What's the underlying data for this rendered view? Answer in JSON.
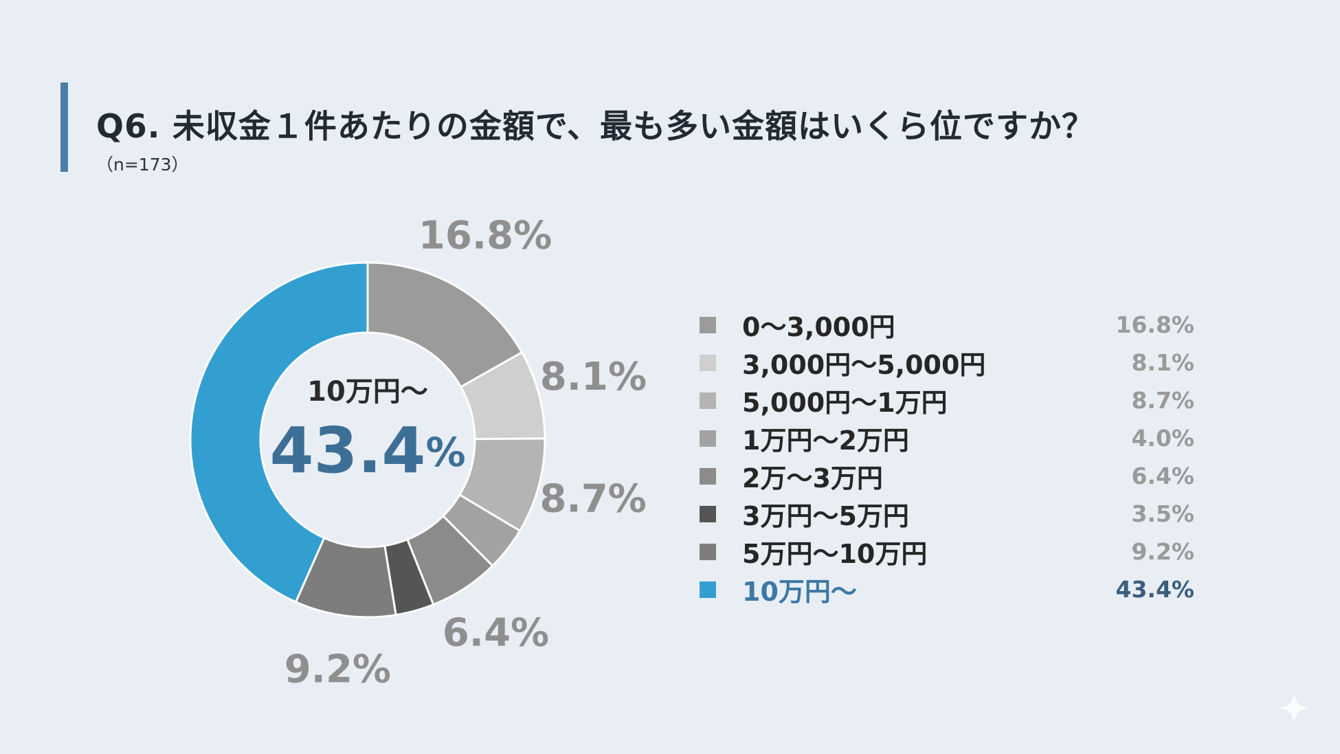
{
  "header": {
    "title": "Q6.  未収金１件あたりの金額で、最も多い金額はいくら位ですか？",
    "subtitle": "（n=173）"
  },
  "colors": {
    "accent_bar": "#4a7ea6",
    "highlight": "#3aa0d0",
    "highlight_text": "#3d6f96"
  },
  "chart_data": {
    "type": "pie",
    "donut": true,
    "unit": "%",
    "categories": [
      "0～3,000円",
      "3,000円～5,000円",
      "5,000円～1万円",
      "1万円～2万円",
      "2万～3万円",
      "3万円～5万円",
      "5万円～10万円",
      "10万円～"
    ],
    "values": [
      16.8,
      8.1,
      8.7,
      4.0,
      6.4,
      3.5,
      9.2,
      43.4
    ],
    "value_labels": [
      "16.8%",
      "8.1%",
      "8.7%",
      "4.0%",
      "6.4%",
      "3.5%",
      "9.2%",
      "43.4%"
    ],
    "colors": [
      "#9b9b9b",
      "#cfcfcf",
      "#b4b4b4",
      "#a2a2a2",
      "#8b8b8b",
      "#555555",
      "#7d7d7d",
      "#339fd0"
    ],
    "outer_labels": [
      {
        "index": 0,
        "text": "16.8%"
      },
      {
        "index": 1,
        "text": "8.1%"
      },
      {
        "index": 2,
        "text": "8.7%"
      },
      {
        "index": 4,
        "text": "6.4%"
      },
      {
        "index": 6,
        "text": "9.2%"
      }
    ],
    "center": {
      "category": "10万円～",
      "value": "43.4",
      "unit": "%"
    },
    "legend_position": "right"
  }
}
